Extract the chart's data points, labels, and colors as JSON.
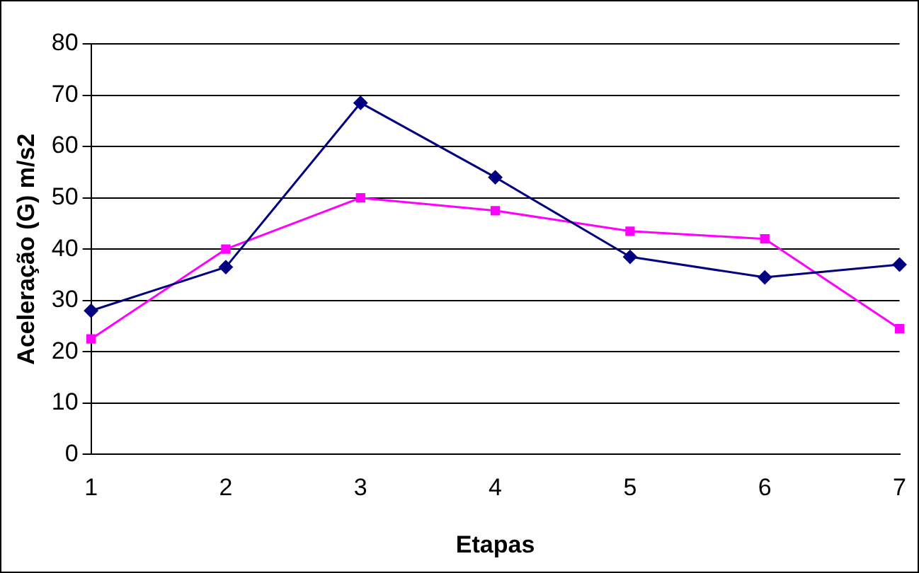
{
  "chart_data": {
    "type": "line",
    "xlabel": "Etapas",
    "ylabel": "Aceleração (G) m/s2",
    "categories": [
      "1",
      "2",
      "3",
      "4",
      "5",
      "6",
      "7"
    ],
    "series": [
      {
        "color": "#000080",
        "marker": "diamond",
        "values": [
          28,
          36.5,
          68.5,
          54,
          38.5,
          34.5,
          37
        ]
      },
      {
        "color": "#ff00ff",
        "marker": "square",
        "values": [
          22.5,
          40,
          50,
          47.5,
          43.5,
          42,
          24.5
        ]
      }
    ],
    "ylim": [
      0,
      80
    ],
    "yticks": [
      0,
      10,
      20,
      30,
      40,
      50,
      60,
      70,
      80
    ],
    "grid": "y",
    "legend": false,
    "line_style": "solid"
  }
}
